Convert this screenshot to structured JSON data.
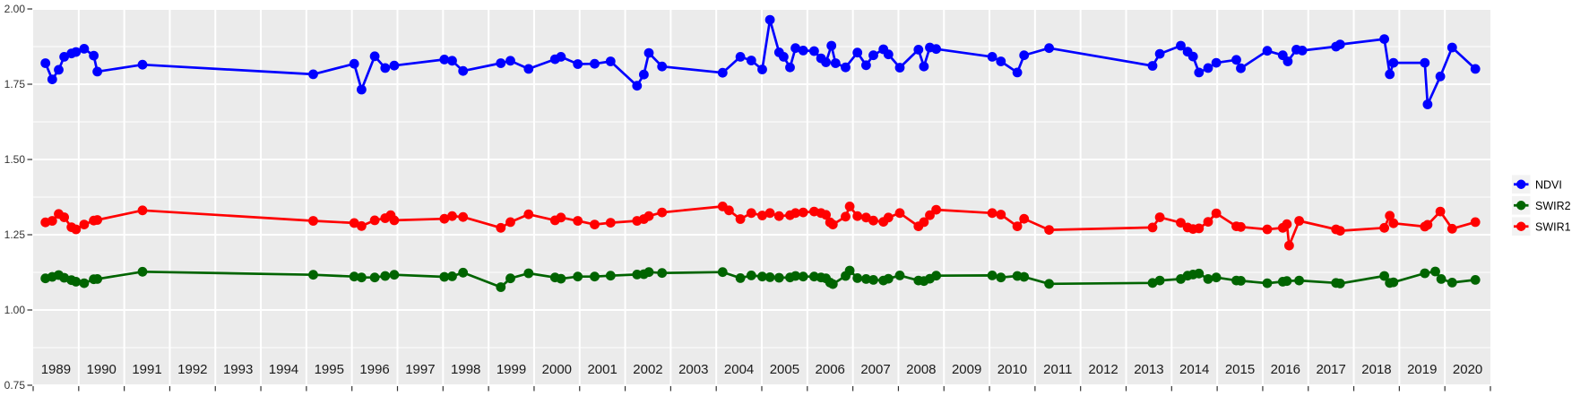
{
  "figure": {
    "background": "#ffffff",
    "panel_background": "#ebebeb",
    "grid_major_color": "#ffffff",
    "grid_minor_color": "#ffffff",
    "tick_color": "#333333",
    "axis_text_color": "#333333",
    "year_text_color": "#1a1a1a"
  },
  "axes": {
    "x": {
      "min": 1989,
      "max": 2021,
      "year_labels": [
        "1989",
        "1990",
        "1991",
        "1992",
        "1993",
        "1994",
        "1995",
        "1996",
        "1997",
        "1998",
        "1999",
        "2000",
        "2001",
        "2002",
        "2003",
        "2004",
        "2005",
        "2006",
        "2007",
        "2008",
        "2009",
        "2010",
        "2011",
        "2012",
        "2013",
        "2014",
        "2015",
        "2016",
        "2017",
        "2018",
        "2019",
        "2020"
      ],
      "grid_years": [
        1990,
        1991,
        1992,
        1993,
        1994,
        1995,
        1996,
        1997,
        1998,
        1999,
        2000,
        2001,
        2002,
        2003,
        2004,
        2005,
        2006,
        2007,
        2008,
        2009,
        2010,
        2011,
        2012,
        2013,
        2014,
        2015,
        2016,
        2017,
        2018,
        2019,
        2020
      ],
      "tick_years": [
        1989,
        1990,
        1991,
        1992,
        1993,
        1994,
        1995,
        1996,
        1997,
        1998,
        1999,
        2000,
        2001,
        2002,
        2003,
        2004,
        2005,
        2006,
        2007,
        2008,
        2009,
        2010,
        2011,
        2012,
        2013,
        2014,
        2015,
        2016,
        2017,
        2018,
        2019,
        2020,
        2021
      ]
    },
    "y": {
      "min": 0.75,
      "max": 2.0,
      "ticks": [
        [
          "2.00",
          2.0
        ],
        [
          "1.75",
          1.75
        ],
        [
          "1.50",
          1.5
        ],
        [
          "1.25",
          1.25
        ],
        [
          "1.00",
          1.0
        ],
        [
          "0.75",
          0.75
        ]
      ],
      "minor": [
        1.875,
        1.625,
        1.375,
        1.125,
        0.875
      ]
    }
  },
  "legend": {
    "key_background": "#f2f2f2",
    "entries": [
      {
        "label": "NDVI",
        "color": "#0000ff"
      },
      {
        "label": "SWIR2",
        "color": "#006400"
      },
      {
        "label": "SWIR1",
        "color": "#ff0000"
      }
    ]
  },
  "chart_data": {
    "type": "line",
    "title": "",
    "xlabel": "",
    "ylabel": "",
    "x_range": [
      1989,
      2021
    ],
    "ylim": [
      0.75,
      2.0
    ],
    "grid": true,
    "legend_position": "right",
    "series": [
      {
        "name": "NDVI",
        "color": "#0000ff",
        "points": [
          [
            1989.27,
            1.82
          ],
          [
            1989.42,
            1.766
          ],
          [
            1989.56,
            1.798
          ],
          [
            1989.68,
            1.841
          ],
          [
            1989.84,
            1.852
          ],
          [
            1989.94,
            1.857
          ],
          [
            1990.12,
            1.868
          ],
          [
            1990.33,
            1.845
          ],
          [
            1990.41,
            1.792
          ],
          [
            1991.4,
            1.815
          ],
          [
            1995.15,
            1.783
          ],
          [
            1996.05,
            1.818
          ],
          [
            1996.21,
            1.732
          ],
          [
            1996.5,
            1.843
          ],
          [
            1996.73,
            1.804
          ],
          [
            1996.93,
            1.812
          ],
          [
            1998.03,
            1.832
          ],
          [
            1998.2,
            1.828
          ],
          [
            1998.44,
            1.794
          ],
          [
            1999.27,
            1.82
          ],
          [
            1999.48,
            1.828
          ],
          [
            1999.88,
            1.801
          ],
          [
            2000.46,
            1.833
          ],
          [
            2000.59,
            1.841
          ],
          [
            2000.96,
            1.817
          ],
          [
            2001.33,
            1.818
          ],
          [
            2001.68,
            1.826
          ],
          [
            2002.26,
            1.745
          ],
          [
            2002.41,
            1.782
          ],
          [
            2002.52,
            1.854
          ],
          [
            2002.81,
            1.809
          ],
          [
            2004.14,
            1.788
          ],
          [
            2004.53,
            1.841
          ],
          [
            2004.77,
            1.829
          ],
          [
            2005.01,
            1.799
          ],
          [
            2005.18,
            1.964
          ],
          [
            2005.38,
            1.856
          ],
          [
            2005.48,
            1.841
          ],
          [
            2005.62,
            1.806
          ],
          [
            2005.74,
            1.87
          ],
          [
            2005.91,
            1.862
          ],
          [
            2006.15,
            1.86
          ],
          [
            2006.3,
            1.836
          ],
          [
            2006.41,
            1.823
          ],
          [
            2006.53,
            1.878
          ],
          [
            2006.62,
            1.82
          ],
          [
            2006.84,
            1.806
          ],
          [
            2007.1,
            1.855
          ],
          [
            2007.29,
            1.813
          ],
          [
            2007.45,
            1.846
          ],
          [
            2007.67,
            1.866
          ],
          [
            2007.78,
            1.849
          ],
          [
            2008.03,
            1.805
          ],
          [
            2008.44,
            1.865
          ],
          [
            2008.56,
            1.809
          ],
          [
            2008.69,
            1.872
          ],
          [
            2008.83,
            1.867
          ],
          [
            2010.06,
            1.841
          ],
          [
            2010.25,
            1.826
          ],
          [
            2010.61,
            1.789
          ],
          [
            2010.76,
            1.846
          ],
          [
            2011.31,
            1.87
          ],
          [
            2013.58,
            1.811
          ],
          [
            2013.74,
            1.851
          ],
          [
            2014.2,
            1.878
          ],
          [
            2014.35,
            1.858
          ],
          [
            2014.47,
            1.842
          ],
          [
            2014.6,
            1.789
          ],
          [
            2014.8,
            1.804
          ],
          [
            2014.98,
            1.821
          ],
          [
            2015.42,
            1.831
          ],
          [
            2015.52,
            1.803
          ],
          [
            2016.1,
            1.861
          ],
          [
            2016.44,
            1.846
          ],
          [
            2016.55,
            1.826
          ],
          [
            2016.74,
            1.865
          ],
          [
            2016.87,
            1.862
          ],
          [
            2017.61,
            1.875
          ],
          [
            2017.7,
            1.882
          ],
          [
            2018.67,
            1.9
          ],
          [
            2018.79,
            1.783
          ],
          [
            2018.87,
            1.821
          ],
          [
            2019.56,
            1.821
          ],
          [
            2019.62,
            1.683
          ],
          [
            2019.9,
            1.776
          ],
          [
            2020.16,
            1.872
          ],
          [
            2020.67,
            1.801
          ]
        ]
      },
      {
        "name": "SWIR2",
        "color": "#006400",
        "points": [
          [
            1989.27,
            1.105
          ],
          [
            1989.42,
            1.11
          ],
          [
            1989.56,
            1.116
          ],
          [
            1989.68,
            1.107
          ],
          [
            1989.84,
            1.099
          ],
          [
            1989.94,
            1.094
          ],
          [
            1990.12,
            1.089
          ],
          [
            1990.33,
            1.102
          ],
          [
            1990.41,
            1.103
          ],
          [
            1991.4,
            1.127
          ],
          [
            1995.15,
            1.117
          ],
          [
            1996.05,
            1.111
          ],
          [
            1996.21,
            1.108
          ],
          [
            1996.5,
            1.108
          ],
          [
            1996.73,
            1.113
          ],
          [
            1996.93,
            1.117
          ],
          [
            1998.03,
            1.11
          ],
          [
            1998.2,
            1.112
          ],
          [
            1998.44,
            1.124
          ],
          [
            1999.27,
            1.076
          ],
          [
            1999.48,
            1.105
          ],
          [
            1999.88,
            1.122
          ],
          [
            2000.46,
            1.108
          ],
          [
            2000.59,
            1.104
          ],
          [
            2000.96,
            1.111
          ],
          [
            2001.33,
            1.111
          ],
          [
            2001.68,
            1.114
          ],
          [
            2002.26,
            1.118
          ],
          [
            2002.41,
            1.119
          ],
          [
            2002.52,
            1.126
          ],
          [
            2002.81,
            1.123
          ],
          [
            2004.14,
            1.126
          ],
          [
            2004.53,
            1.106
          ],
          [
            2004.77,
            1.115
          ],
          [
            2005.01,
            1.111
          ],
          [
            2005.18,
            1.109
          ],
          [
            2005.38,
            1.107
          ],
          [
            2005.62,
            1.108
          ],
          [
            2005.74,
            1.113
          ],
          [
            2005.91,
            1.111
          ],
          [
            2006.15,
            1.111
          ],
          [
            2006.3,
            1.108
          ],
          [
            2006.41,
            1.105
          ],
          [
            2006.5,
            1.091
          ],
          [
            2006.56,
            1.086
          ],
          [
            2006.84,
            1.113
          ],
          [
            2006.93,
            1.131
          ],
          [
            2007.1,
            1.106
          ],
          [
            2007.29,
            1.103
          ],
          [
            2007.45,
            1.1
          ],
          [
            2007.67,
            1.098
          ],
          [
            2007.78,
            1.104
          ],
          [
            2008.03,
            1.115
          ],
          [
            2008.44,
            1.098
          ],
          [
            2008.56,
            1.096
          ],
          [
            2008.69,
            1.104
          ],
          [
            2008.83,
            1.114
          ],
          [
            2010.06,
            1.115
          ],
          [
            2010.25,
            1.108
          ],
          [
            2010.61,
            1.113
          ],
          [
            2010.76,
            1.11
          ],
          [
            2011.31,
            1.087
          ],
          [
            2013.58,
            1.09
          ],
          [
            2013.74,
            1.098
          ],
          [
            2014.2,
            1.103
          ],
          [
            2014.35,
            1.114
          ],
          [
            2014.47,
            1.118
          ],
          [
            2014.6,
            1.121
          ],
          [
            2014.8,
            1.103
          ],
          [
            2014.98,
            1.108
          ],
          [
            2015.42,
            1.098
          ],
          [
            2015.52,
            1.097
          ],
          [
            2016.1,
            1.089
          ],
          [
            2016.44,
            1.094
          ],
          [
            2016.53,
            1.096
          ],
          [
            2016.8,
            1.098
          ],
          [
            2017.61,
            1.09
          ],
          [
            2017.7,
            1.088
          ],
          [
            2018.67,
            1.113
          ],
          [
            2018.79,
            1.09
          ],
          [
            2018.87,
            1.092
          ],
          [
            2019.56,
            1.122
          ],
          [
            2019.79,
            1.128
          ],
          [
            2019.92,
            1.103
          ],
          [
            2020.16,
            1.091
          ],
          [
            2020.67,
            1.1
          ]
        ]
      },
      {
        "name": "SWIR1",
        "color": "#ff0000",
        "points": [
          [
            1989.27,
            1.291
          ],
          [
            1989.42,
            1.296
          ],
          [
            1989.56,
            1.319
          ],
          [
            1989.68,
            1.308
          ],
          [
            1989.84,
            1.275
          ],
          [
            1989.94,
            1.268
          ],
          [
            1990.12,
            1.284
          ],
          [
            1990.33,
            1.297
          ],
          [
            1990.41,
            1.299
          ],
          [
            1991.4,
            1.331
          ],
          [
            1995.15,
            1.296
          ],
          [
            1996.05,
            1.289
          ],
          [
            1996.21,
            1.279
          ],
          [
            1996.5,
            1.298
          ],
          [
            1996.73,
            1.305
          ],
          [
            1996.85,
            1.315
          ],
          [
            1996.93,
            1.298
          ],
          [
            1998.03,
            1.303
          ],
          [
            1998.2,
            1.312
          ],
          [
            1998.44,
            1.309
          ],
          [
            1999.27,
            1.273
          ],
          [
            1999.48,
            1.292
          ],
          [
            1999.88,
            1.318
          ],
          [
            2000.46,
            1.298
          ],
          [
            2000.59,
            1.307
          ],
          [
            2000.96,
            1.296
          ],
          [
            2001.33,
            1.284
          ],
          [
            2001.68,
            1.29
          ],
          [
            2002.26,
            1.296
          ],
          [
            2002.41,
            1.302
          ],
          [
            2002.52,
            1.312
          ],
          [
            2002.81,
            1.324
          ],
          [
            2004.14,
            1.344
          ],
          [
            2004.28,
            1.331
          ],
          [
            2004.53,
            1.302
          ],
          [
            2004.77,
            1.322
          ],
          [
            2005.01,
            1.314
          ],
          [
            2005.18,
            1.322
          ],
          [
            2005.38,
            1.312
          ],
          [
            2005.62,
            1.315
          ],
          [
            2005.74,
            1.322
          ],
          [
            2005.91,
            1.324
          ],
          [
            2006.15,
            1.327
          ],
          [
            2006.3,
            1.322
          ],
          [
            2006.41,
            1.316
          ],
          [
            2006.5,
            1.291
          ],
          [
            2006.56,
            1.284
          ],
          [
            2006.84,
            1.31
          ],
          [
            2006.93,
            1.344
          ],
          [
            2007.1,
            1.312
          ],
          [
            2007.29,
            1.307
          ],
          [
            2007.45,
            1.297
          ],
          [
            2007.67,
            1.293
          ],
          [
            2007.78,
            1.307
          ],
          [
            2008.03,
            1.322
          ],
          [
            2008.44,
            1.278
          ],
          [
            2008.56,
            1.292
          ],
          [
            2008.69,
            1.315
          ],
          [
            2008.83,
            1.333
          ],
          [
            2010.06,
            1.322
          ],
          [
            2010.25,
            1.317
          ],
          [
            2010.61,
            1.278
          ],
          [
            2010.76,
            1.303
          ],
          [
            2011.31,
            1.266
          ],
          [
            2013.58,
            1.274
          ],
          [
            2013.74,
            1.308
          ],
          [
            2014.2,
            1.29
          ],
          [
            2014.35,
            1.274
          ],
          [
            2014.47,
            1.269
          ],
          [
            2014.6,
            1.271
          ],
          [
            2014.8,
            1.293
          ],
          [
            2014.98,
            1.321
          ],
          [
            2015.42,
            1.278
          ],
          [
            2015.52,
            1.276
          ],
          [
            2016.1,
            1.268
          ],
          [
            2016.44,
            1.273
          ],
          [
            2016.53,
            1.285
          ],
          [
            2016.58,
            1.214
          ],
          [
            2016.8,
            1.296
          ],
          [
            2017.61,
            1.268
          ],
          [
            2017.7,
            1.263
          ],
          [
            2018.67,
            1.273
          ],
          [
            2018.79,
            1.313
          ],
          [
            2018.87,
            1.288
          ],
          [
            2019.56,
            1.277
          ],
          [
            2019.62,
            1.283
          ],
          [
            2019.9,
            1.327
          ],
          [
            2020.16,
            1.27
          ],
          [
            2020.67,
            1.292
          ]
        ]
      }
    ]
  }
}
